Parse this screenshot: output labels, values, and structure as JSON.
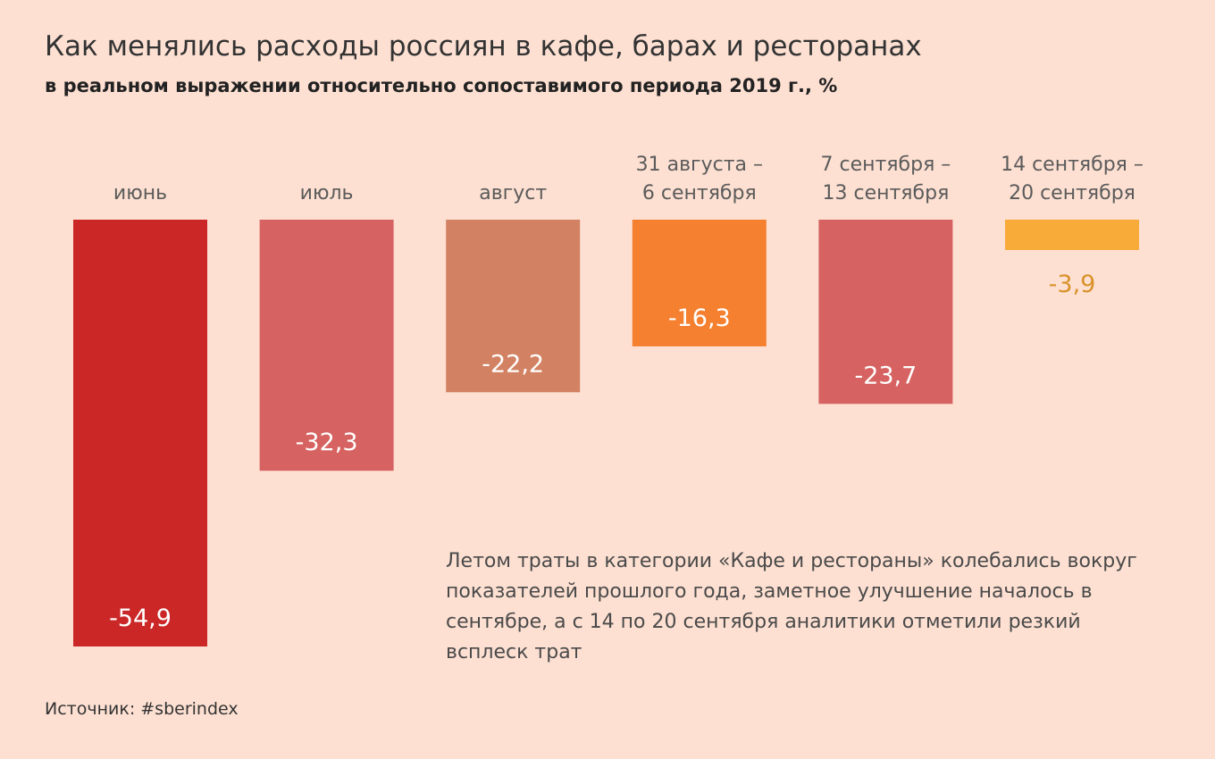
{
  "header": {
    "title": "Как менялись расходы россиян в кафе, барах и ресторанах",
    "subtitle": "в реальном выражении относительно сопоставимого периода 2019 г., %"
  },
  "annotation": "Летом траты в категории «Кафе и рестораны» колебались вокруг показателей прошлого года, заметное улучшение началось в сентябре, а с 14 по 20 сентября аналитики отметили резкий всплеск трат",
  "source": "Источник: #sberindex",
  "chart_data": {
    "type": "bar",
    "categories": [
      [
        "июнь"
      ],
      [
        "июль"
      ],
      [
        "август"
      ],
      [
        "31 августа –",
        "6 сентября"
      ],
      [
        "7 сентября –",
        "13 сентября"
      ],
      [
        "14 сентября –",
        "20 сентября"
      ]
    ],
    "values": [
      -54.9,
      -32.3,
      -22.2,
      -16.3,
      -23.7,
      -3.9
    ],
    "value_labels": [
      "-54,9",
      "-32,3",
      "-22,2",
      "-16,3",
      "-23,7",
      "-3,9"
    ],
    "colors": [
      "#cb2727",
      "#d66361",
      "#d28262",
      "#f5802f",
      "#d66361",
      "#f9ab3a"
    ],
    "label_colors": [
      "#ffffff",
      "#ffffff",
      "#ffffff",
      "#ffffff",
      "#ffffff",
      "#d9922a"
    ],
    "label_position": [
      "inside",
      "inside",
      "inside",
      "inside",
      "inside",
      "below"
    ],
    "ylim": [
      -55,
      0
    ],
    "xlabel": "",
    "ylabel": "",
    "grid": false,
    "legend": "none"
  }
}
